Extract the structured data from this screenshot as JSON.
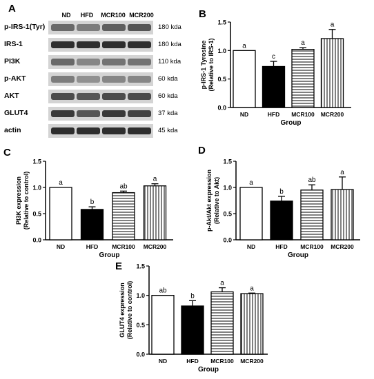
{
  "panel_letters": {
    "A": "A",
    "B": "B",
    "C": "C",
    "D": "D",
    "E": "E"
  },
  "blot": {
    "lanes": [
      "ND",
      "HFD",
      "MCR100",
      "MCR200"
    ],
    "rows": [
      {
        "label": "p-IRS-1(Tyr)",
        "kda": "180 kda"
      },
      {
        "label": "IRS-1",
        "kda": "180 kda"
      },
      {
        "label": "PI3K",
        "kda": "110 kda"
      },
      {
        "label": "p-AKT",
        "kda": "60 kda"
      },
      {
        "label": "AKT",
        "kda": "60 kda"
      },
      {
        "label": "GLUT4",
        "kda": "37 kda"
      },
      {
        "label": "actin",
        "kda": "45 kda"
      }
    ]
  },
  "colors": {
    "ND": "#ffffff",
    "HFD": "#000000",
    "MCR100": "horizontal-stripes",
    "MCR200": "vertical-stripes"
  },
  "chart_data": [
    {
      "id": "B",
      "type": "bar",
      "categories": [
        "ND",
        "HFD",
        "MCR100",
        "MCR200"
      ],
      "values": [
        1.0,
        0.72,
        1.02,
        1.21
      ],
      "errors": [
        0,
        0.09,
        0.03,
        0.16
      ],
      "letters": [
        "a",
        "c",
        "a",
        "a"
      ],
      "xlabel": "Group",
      "ylabel_lines": [
        "p-IRS-1 Tyrosine",
        "(Relative to IRS-1)"
      ],
      "ylim": [
        0,
        1.5
      ],
      "yticks": [
        "0.0",
        "0.5",
        "1.0",
        "1.5"
      ]
    },
    {
      "id": "C",
      "type": "bar",
      "categories": [
        "ND",
        "HFD",
        "MCR100",
        "MCR200"
      ],
      "values": [
        1.0,
        0.58,
        0.9,
        1.03
      ],
      "errors": [
        0,
        0.05,
        0.03,
        0.04
      ],
      "letters": [
        "a",
        "b",
        "ab",
        "a"
      ],
      "xlabel": "Group",
      "ylabel_lines": [
        "PI3K expression",
        "(Relative to control)"
      ],
      "ylim": [
        0,
        1.5
      ],
      "yticks": [
        "0.0",
        "0.5",
        "1.0",
        "1.5"
      ]
    },
    {
      "id": "D",
      "type": "bar",
      "categories": [
        "ND",
        "HFD",
        "MCR100",
        "MCR200"
      ],
      "values": [
        1.0,
        0.74,
        0.95,
        0.96
      ],
      "errors": [
        0,
        0.09,
        0.1,
        0.24
      ],
      "letters": [
        "a",
        "b",
        "ab",
        "a"
      ],
      "xlabel": "Group",
      "ylabel_lines": [
        "p-Akt/Akt expression",
        "(Relative to Akt)"
      ],
      "ylim": [
        0,
        1.5
      ],
      "yticks": [
        "0.0",
        "0.5",
        "1.0",
        "1.5"
      ]
    },
    {
      "id": "E",
      "type": "bar",
      "categories": [
        "ND",
        "HFD",
        "MCR100",
        "MCR200"
      ],
      "values": [
        1.0,
        0.82,
        1.06,
        1.03
      ],
      "errors": [
        0,
        0.09,
        0.07,
        0.01
      ],
      "letters": [
        "ab",
        "b",
        "a",
        "a"
      ],
      "xlabel": "Group",
      "ylabel_lines": [
        "GLUT4 expression",
        "(Relative to control)"
      ],
      "ylim": [
        0,
        1.5
      ],
      "yticks": [
        "0.0",
        "0.5",
        "1.0",
        "1.5"
      ]
    }
  ]
}
